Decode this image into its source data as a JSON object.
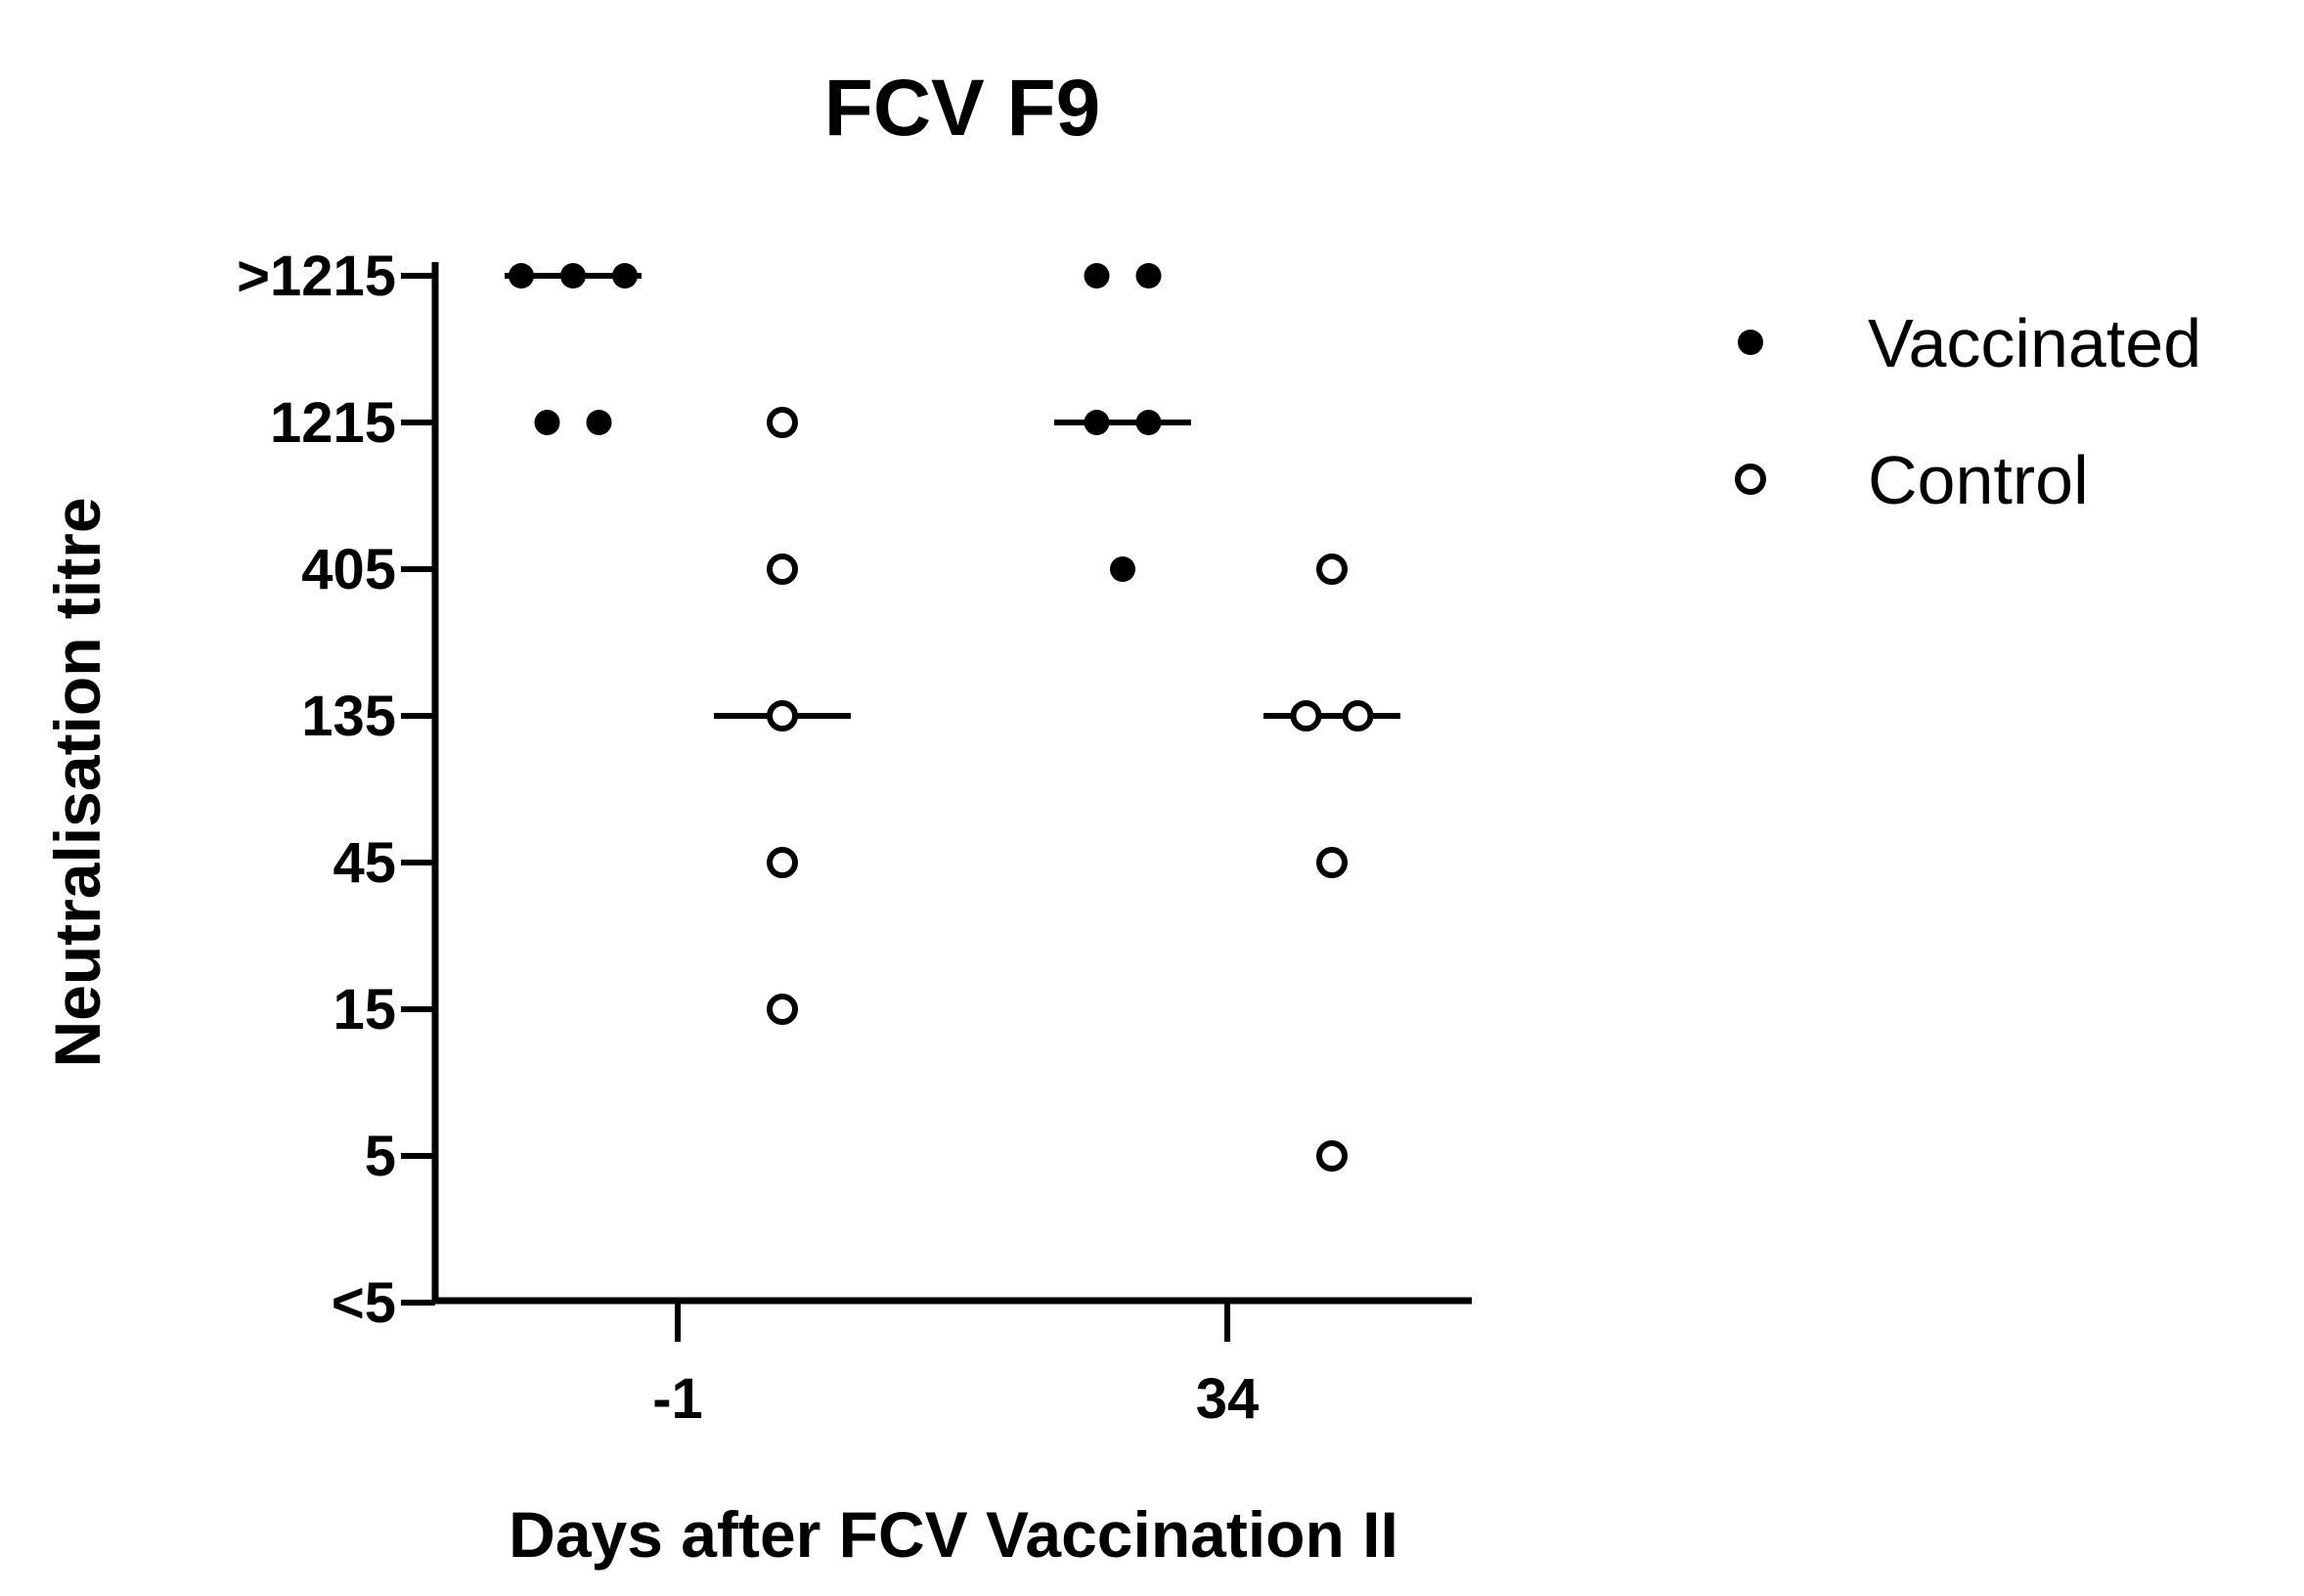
{
  "chart_data": {
    "type": "scatter",
    "title": "FCV F9",
    "xlabel": "Days after FCV Vaccination II",
    "ylabel": "Neutralisation titre",
    "categories": [
      "-1",
      "34"
    ],
    "y_ticks": [
      "<5",
      "5",
      "15",
      "45",
      "135",
      "405",
      "1215",
      ">1215"
    ],
    "legend_position": "right",
    "series": [
      {
        "name": "Vaccinated",
        "marker": "filled-circle",
        "color": "#000000",
        "groups": [
          {
            "category": "-1",
            "values": [
              ">1215",
              ">1215",
              ">1215",
              "1215",
              "1215"
            ],
            "median": ">1215"
          },
          {
            "category": "34",
            "values": [
              ">1215",
              ">1215",
              "1215",
              "1215",
              "405"
            ],
            "median": "1215"
          }
        ]
      },
      {
        "name": "Control",
        "marker": "open-circle",
        "color": "#000000",
        "groups": [
          {
            "category": "-1",
            "values": [
              "1215",
              "405",
              "135",
              "45",
              "15"
            ],
            "median": "135"
          },
          {
            "category": "34",
            "values": [
              "405",
              "135",
              "135",
              "45",
              "5"
            ],
            "median": "135"
          }
        ]
      }
    ]
  }
}
